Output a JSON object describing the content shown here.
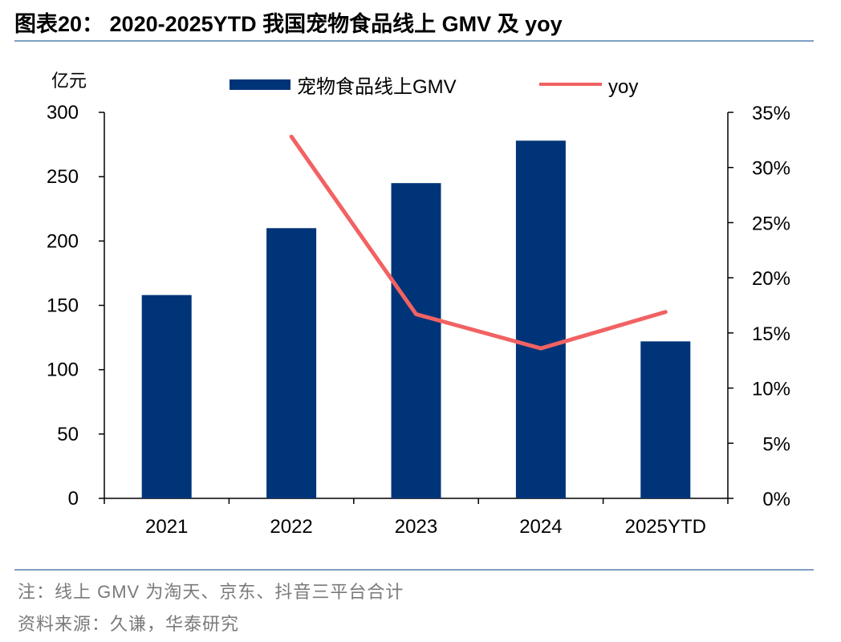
{
  "title": "图表20： 2020-2025YTD 我国宠物食品线上 GMV 及 yoy",
  "notes": {
    "note": "注：线上 GMV 为淘天、京东、抖音三平台合计",
    "source": "资料来源：久谦，华泰研究"
  },
  "colors": {
    "bar": "#003478",
    "line": "#f26263",
    "rule": "#7f9fc1"
  },
  "chart_data": {
    "type": "bar",
    "categories": [
      "2021",
      "2022",
      "2023",
      "2024",
      "2025YTD"
    ],
    "series": [
      {
        "name": "宠物食品线上GMV",
        "type": "bar",
        "axis": "left",
        "values": [
          158,
          210,
          245,
          278,
          122
        ]
      },
      {
        "name": "yoy",
        "type": "line",
        "axis": "right",
        "values": [
          null,
          32.8,
          16.7,
          13.6,
          16.9
        ]
      }
    ],
    "y_left": {
      "unit": "亿元",
      "min": 0,
      "max": 300,
      "ticks": [
        "0",
        "50",
        "100",
        "150",
        "200",
        "250",
        "300"
      ]
    },
    "y_right": {
      "min": 0,
      "max": 35,
      "ticks": [
        "0%",
        "5%",
        "10%",
        "15%",
        "20%",
        "25%",
        "30%",
        "35%"
      ]
    },
    "grid": false,
    "legend": "top"
  }
}
